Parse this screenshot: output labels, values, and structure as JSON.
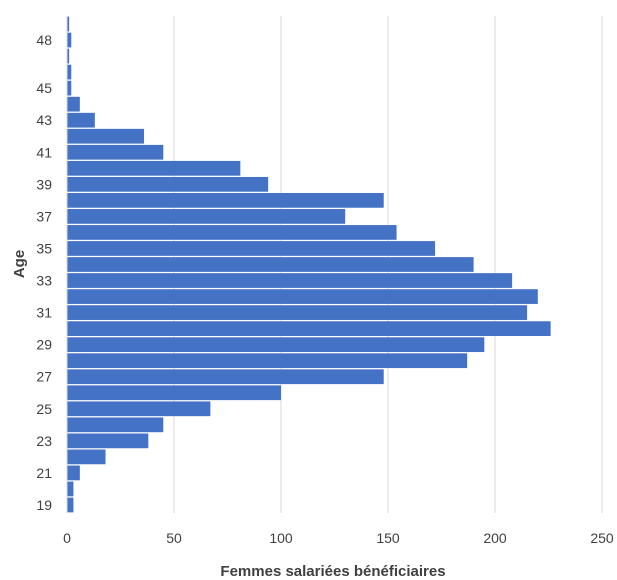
{
  "chart_data": {
    "type": "bar",
    "orientation": "horizontal",
    "xlabel": "Femmes salariées bénéficiaires",
    "ylabel": "Age",
    "xlim": [
      0,
      250
    ],
    "x_ticks": [
      "0",
      "50",
      "100",
      "150",
      "200",
      "250"
    ],
    "y_tick_labels": [
      "19",
      "21",
      "23",
      "25",
      "27",
      "29",
      "31",
      "33",
      "35",
      "37",
      "39",
      "41",
      "43",
      "45",
      "48"
    ],
    "grid": "vertical",
    "bar_color": "#4472C4",
    "categories": [
      "19",
      "20",
      "21",
      "22",
      "23",
      "24",
      "25",
      "26",
      "27",
      "28",
      "29",
      "30",
      "31",
      "32",
      "33",
      "34",
      "35",
      "36",
      "37",
      "38",
      "39",
      "40",
      "41",
      "42",
      "43",
      "44",
      "45",
      "46",
      "47",
      "48",
      "49"
    ],
    "values": [
      3,
      3,
      6,
      18,
      38,
      45,
      67,
      100,
      148,
      187,
      195,
      226,
      215,
      220,
      208,
      190,
      172,
      154,
      130,
      148,
      94,
      81,
      45,
      36,
      13,
      6,
      2,
      2,
      1,
      2,
      1
    ]
  }
}
